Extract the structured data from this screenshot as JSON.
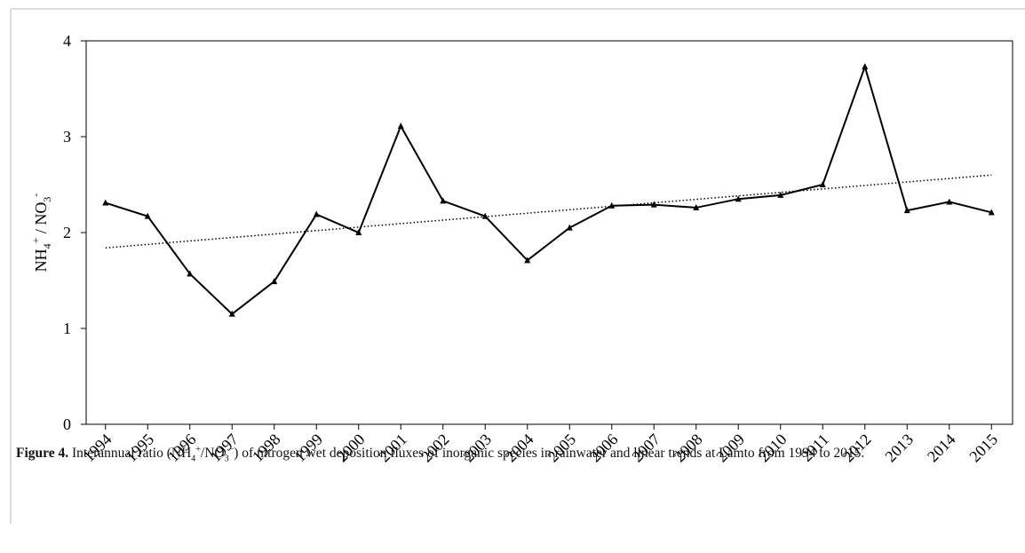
{
  "chart_data": {
    "type": "line",
    "y_label": [
      "NH",
      "4",
      "+",
      " / NO",
      "3",
      "-"
    ],
    "categories": [
      "1994",
      "1995",
      "1996",
      "1997",
      "1998",
      "1999",
      "2000",
      "2001",
      "2002",
      "2003",
      "2004",
      "2005",
      "2006",
      "2007",
      "2008",
      "2009",
      "2010",
      "2011",
      "2012",
      "2013",
      "2014",
      "2015"
    ],
    "values": [
      2.31,
      2.17,
      1.57,
      1.15,
      1.49,
      2.19,
      2.0,
      3.11,
      2.33,
      2.17,
      1.71,
      2.05,
      2.28,
      2.29,
      2.26,
      2.35,
      2.39,
      2.5,
      3.73,
      2.23,
      2.32,
      2.21
    ],
    "color": "#000000",
    "trendline": [
      1.84,
      2.6
    ],
    "ylim": [
      0,
      4
    ],
    "yticks": [
      0,
      1,
      2,
      3,
      4
    ],
    "caption": {
      "label": "Figure 4.",
      "parts": [
        " Interannual ratio (NH",
        "4",
        "+",
        "/NO",
        "3",
        "−",
        ") of nitrogen wet deposition fluxes of inorganic species in rainwater and linear trends at Lamto from 1994 to 2015."
      ]
    }
  }
}
